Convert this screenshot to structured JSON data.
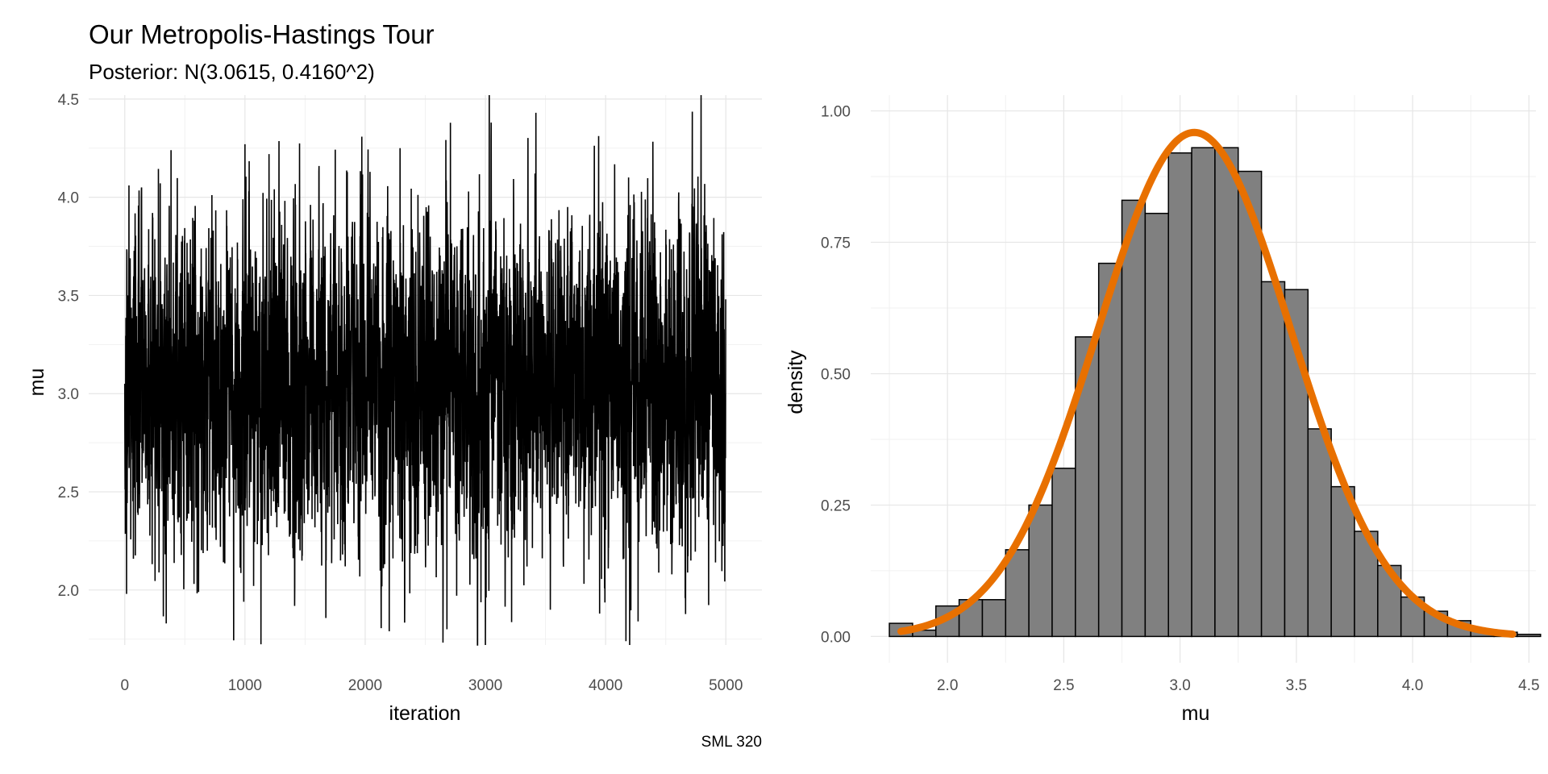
{
  "title": "Our Metropolis-Hastings Tour",
  "subtitle": "Posterior: N(3.0615, 0.4160^2)",
  "caption": "SML 320",
  "chart_data": [
    {
      "type": "line",
      "xlabel": "iteration",
      "ylabel": "mu",
      "xlim": [
        -300,
        5300
      ],
      "ylim": [
        1.72,
        4.52
      ],
      "x_ticks": [
        "0",
        "1000",
        "2000",
        "3000",
        "4000",
        "5000"
      ],
      "y_ticks": [
        "2.0",
        "2.5",
        "3.0",
        "3.5",
        "4.0",
        "4.5"
      ],
      "n_iterations": 5000,
      "mean": 3.0615,
      "sd": 0.416,
      "grid": true,
      "series_color": "#000000",
      "notable_points": [
        {
          "x": 0,
          "y": 3.05
        },
        {
          "x": 15,
          "y": 1.98
        },
        {
          "x": 35,
          "y": 4.06
        },
        {
          "x": 140,
          "y": 4.05
        },
        {
          "x": 345,
          "y": 1.83
        },
        {
          "x": 385,
          "y": 4.24
        },
        {
          "x": 990,
          "y": 1.94
        },
        {
          "x": 1000,
          "y": 4.27
        },
        {
          "x": 1200,
          "y": 4.22
        },
        {
          "x": 2200,
          "y": 1.79
        },
        {
          "x": 2290,
          "y": 4.25
        },
        {
          "x": 2680,
          "y": 1.8
        },
        {
          "x": 3420,
          "y": 4.43
        },
        {
          "x": 3950,
          "y": 1.88
        },
        {
          "x": 4270,
          "y": 1.84
        },
        {
          "x": 4720,
          "y": 4.1
        },
        {
          "x": 4990,
          "y": 3.0
        }
      ]
    },
    {
      "type": "bar",
      "subtype": "histogram",
      "xlabel": "mu",
      "ylabel": "density",
      "xlim": [
        1.67,
        4.53
      ],
      "ylim": [
        -0.05,
        1.03
      ],
      "x_ticks": [
        "2.0",
        "2.5",
        "3.0",
        "3.5",
        "4.0",
        "4.5"
      ],
      "y_ticks": [
        "0.00",
        "0.25",
        "0.50",
        "0.75",
        "1.00"
      ],
      "bin_width": 0.1,
      "bin_start": 1.75,
      "values": [
        0.025,
        0.012,
        0.058,
        0.07,
        0.07,
        0.165,
        0.25,
        0.32,
        0.57,
        0.71,
        0.83,
        0.805,
        0.92,
        0.93,
        0.93,
        0.885,
        0.675,
        0.66,
        0.395,
        0.285,
        0.2,
        0.135,
        0.075,
        0.048,
        0.03,
        0.012,
        0.008,
        0.004
      ],
      "bar_fill": "#808080",
      "bar_stroke": "#000000",
      "curve": {
        "type": "normal_density",
        "mean": 3.0615,
        "sd": 0.416,
        "color": "#E87000",
        "x_range": [
          1.8,
          4.43
        ]
      },
      "grid": true
    }
  ]
}
